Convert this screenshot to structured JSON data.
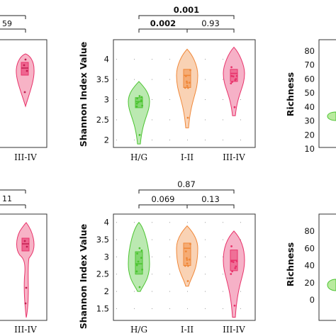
{
  "chart_data": [
    {
      "type": "violin",
      "position": "top-left",
      "categories": [
        "III-IV"
      ],
      "comparisons": [
        {
          "label": "59",
          "bold": false
        },
        {
          "label": "",
          "bold": false
        }
      ],
      "series": [
        {
          "category": "III-IV",
          "color": "#e8336b",
          "min": 0,
          "q1": 0,
          "median": 0,
          "q3": 0,
          "max": 0
        }
      ]
    },
    {
      "type": "violin",
      "position": "top-middle",
      "ylabel": "Shannon Index Value",
      "ylim": [
        1.85,
        4.45
      ],
      "yticks": [
        "2",
        "2.5",
        "3",
        "3.5",
        "4"
      ],
      "categories": [
        "H/G",
        "I-II",
        "III-IV"
      ],
      "comparisons": [
        {
          "from": "H/G",
          "to": "III-IV",
          "label": "0.001",
          "bold": true
        },
        {
          "from": "H/G",
          "to": "I-II",
          "label": "0.002",
          "bold": true
        },
        {
          "from": "I-II",
          "to": "III-IV",
          "label": "0.93",
          "bold": false
        }
      ],
      "series": [
        {
          "category": "H/G",
          "color": "#4cc431",
          "min": 1.9,
          "q1": 2.8,
          "median": 2.95,
          "q3": 3.05,
          "max": 3.45
        },
        {
          "category": "I-II",
          "color": "#f0883a",
          "min": 2.3,
          "q1": 3.3,
          "median": 3.6,
          "q3": 3.75,
          "max": 4.25
        },
        {
          "category": "III-IV",
          "color": "#e8336b",
          "min": 2.6,
          "q1": 3.45,
          "median": 3.65,
          "q3": 3.75,
          "max": 4.3
        }
      ]
    },
    {
      "type": "violin",
      "position": "top-right",
      "ylabel": "Richness",
      "yticks": [
        "10",
        "20",
        "30",
        "40",
        "50",
        "60",
        "70",
        "80"
      ]
    },
    {
      "type": "violin",
      "position": "bottom-left",
      "categories": [
        "III-IV"
      ],
      "comparisons": [
        {
          "label": "11",
          "bold": false
        },
        {
          "label": "",
          "bold": false
        }
      ],
      "series": [
        {
          "category": "III-IV",
          "color": "#e8336b",
          "min": 0,
          "q1": 0,
          "median": 0,
          "q3": 0,
          "max": 0
        }
      ]
    },
    {
      "type": "violin",
      "position": "bottom-middle",
      "ylabel": "Shannon Index Value",
      "ylim": [
        1.2,
        4.2
      ],
      "yticks": [
        "1.5",
        "2",
        "2.5",
        "3",
        "3.5",
        "4"
      ],
      "categories": [
        "H/G",
        "I-II",
        "III-IV"
      ],
      "comparisons": [
        {
          "from": "H/G",
          "to": "III-IV",
          "label": "0.87",
          "bold": false
        },
        {
          "from": "H/G",
          "to": "I-II",
          "label": "0.069",
          "bold": false
        },
        {
          "from": "I-II",
          "to": "III-IV",
          "label": "0.13",
          "bold": false
        }
      ],
      "series": [
        {
          "category": "H/G",
          "color": "#4cc431",
          "min": 2.0,
          "q1": 2.5,
          "median": 2.8,
          "q3": 3.15,
          "max": 4.0
        },
        {
          "category": "I-II",
          "color": "#f0883a",
          "min": 2.15,
          "q1": 2.75,
          "median": 3.25,
          "q3": 3.4,
          "max": 3.9
        },
        {
          "category": "III-IV",
          "color": "#e8336b",
          "min": 1.25,
          "q1": 2.6,
          "median": 2.9,
          "q3": 3.2,
          "max": 3.75
        }
      ]
    },
    {
      "type": "violin",
      "position": "bottom-right",
      "ylabel": "Richness",
      "yticks": [
        "0",
        "20",
        "40",
        "60",
        "80"
      ]
    }
  ]
}
